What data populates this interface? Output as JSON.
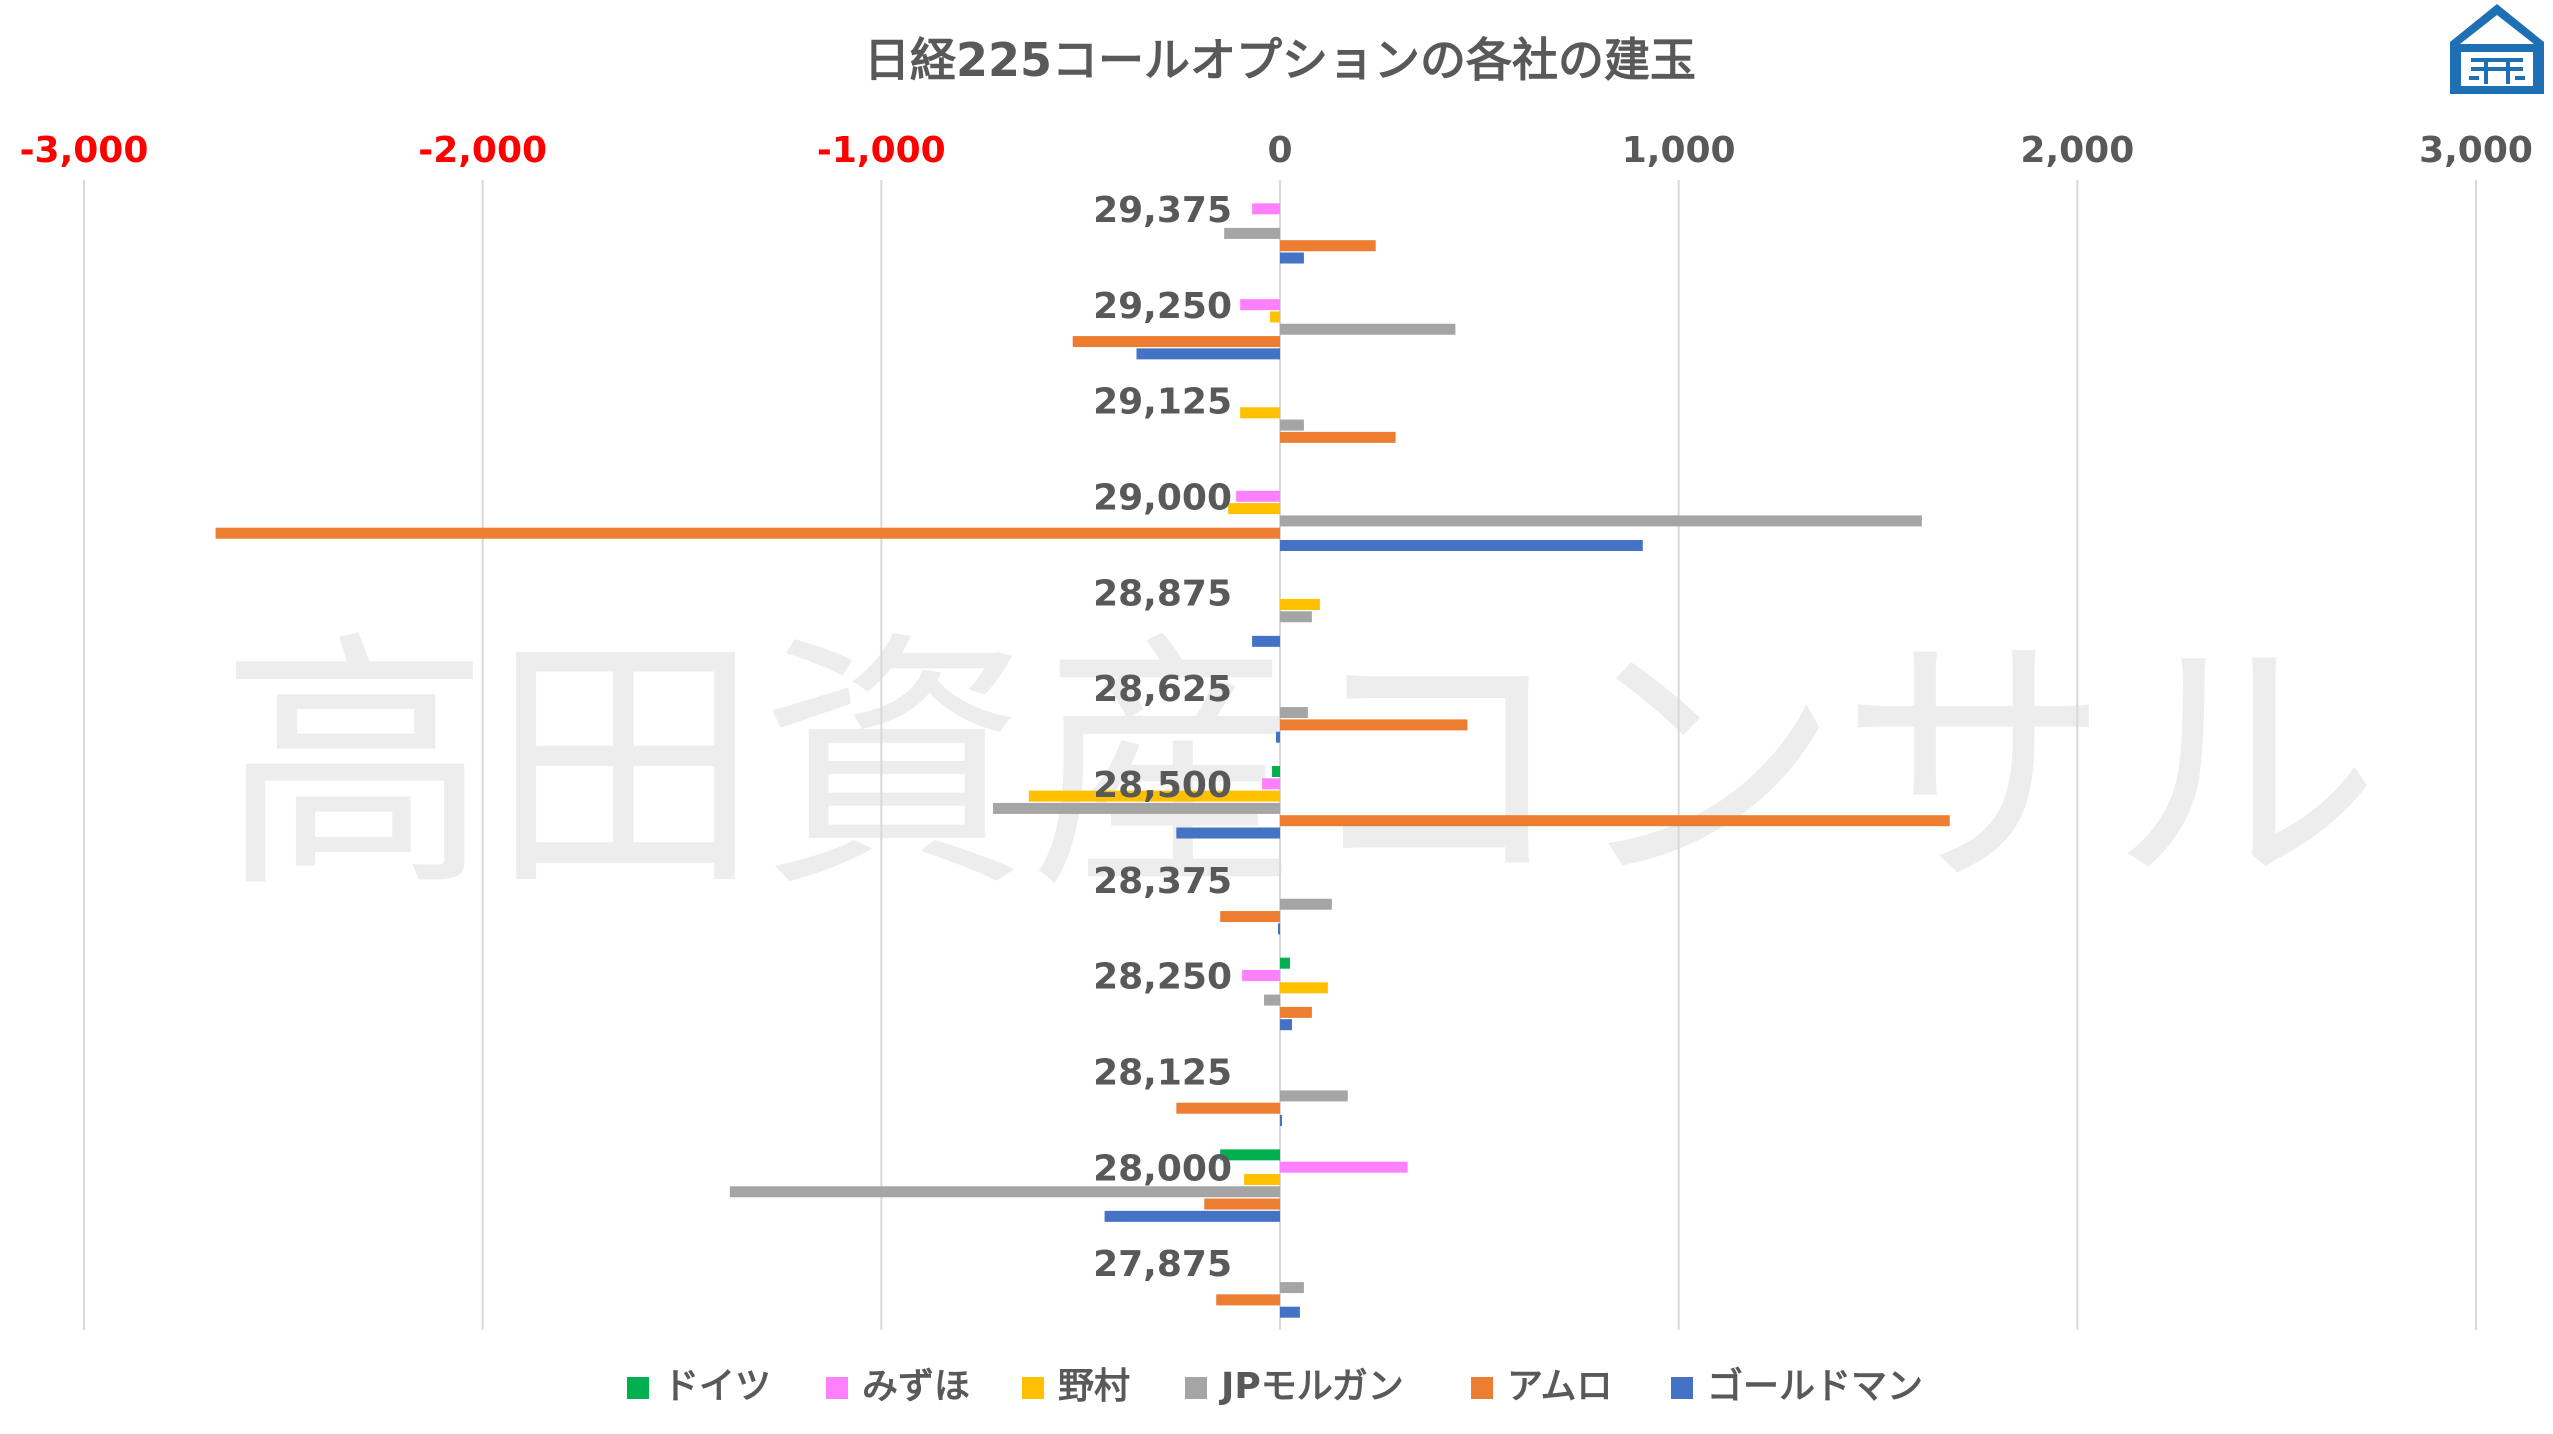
{
  "brand": {
    "watermark": "高田資産コンサル",
    "logo": "house-logo",
    "logo_color": "#1f6fb5"
  },
  "chart_data": {
    "type": "bar",
    "orientation": "horizontal",
    "title": "日経225コールオプションの各社の建玉",
    "xlim": [
      -3000,
      3000
    ],
    "x_ticks": [
      -3000,
      -2000,
      -1000,
      0,
      1000,
      2000,
      3000
    ],
    "x_tick_labels": [
      "-3,000",
      "-2,000",
      "-1,000",
      "0",
      "1,000",
      "2,000",
      "3,000"
    ],
    "negative_tick_color": "#ff0000",
    "positive_tick_color": "#595959",
    "grid": true,
    "legend_position": "bottom",
    "categories": [
      "29,375",
      "29,250",
      "29,125",
      "29,000",
      "28,875",
      "28,625",
      "28,500",
      "28,375",
      "28,250",
      "28,125",
      "28,000",
      "27,875"
    ],
    "series": [
      {
        "name": "ドイツ",
        "color": "#00b050",
        "values": [
          0,
          0,
          0,
          0,
          0,
          0,
          -20,
          0,
          25,
          0,
          -150,
          0
        ]
      },
      {
        "name": "みずほ",
        "color": "#ff80ff",
        "values": [
          -70,
          -100,
          0,
          -110,
          0,
          0,
          -45,
          0,
          -95,
          0,
          320,
          0
        ]
      },
      {
        "name": "野村",
        "color": "#ffc000",
        "values": [
          0,
          -25,
          -100,
          -130,
          100,
          0,
          -630,
          0,
          120,
          0,
          -90,
          0
        ]
      },
      {
        "name": "JPモルガン",
        "color": "#a5a5a5",
        "values": [
          -140,
          440,
          60,
          1610,
          80,
          70,
          -720,
          130,
          -40,
          170,
          -1380,
          60
        ]
      },
      {
        "name": "アムロ",
        "color": "#ed7d31",
        "values": [
          240,
          -520,
          290,
          -2670,
          0,
          470,
          1680,
          -150,
          80,
          -260,
          -190,
          -160
        ]
      },
      {
        "name": "ゴールドマン",
        "color": "#4472c4",
        "values": [
          60,
          -360,
          0,
          910,
          -70,
          -10,
          -260,
          -5,
          30,
          5,
          -440,
          50
        ]
      }
    ]
  }
}
